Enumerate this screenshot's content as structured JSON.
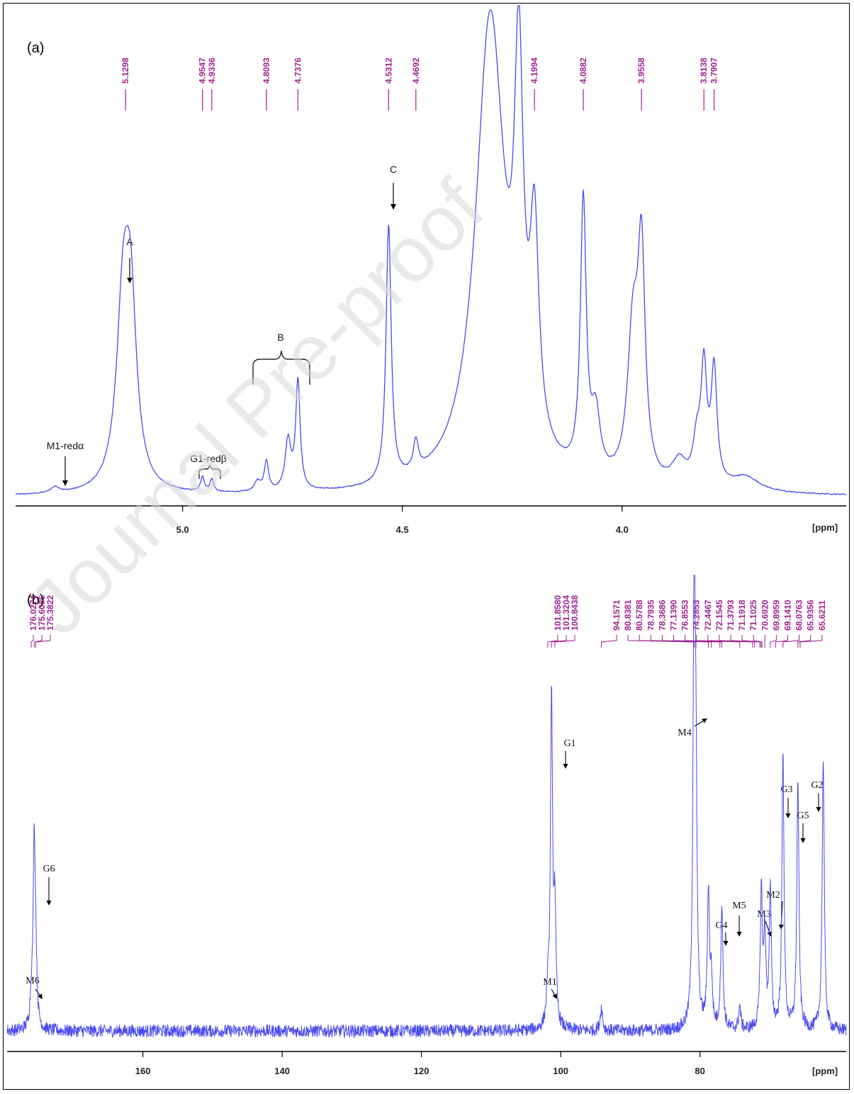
{
  "watermark": "Journal Pre-proof",
  "colors": {
    "spectrum": "#4a4af0",
    "peak_labels": "#a0208f",
    "frame": "#000000"
  },
  "chart_data": [
    {
      "panel": "(a)",
      "type": "line",
      "x_unit": "[ppm]",
      "x_axis_reversed": true,
      "xlim": [
        5.38,
        3.49
      ],
      "x_ticks": [
        "5.0",
        "4.5",
        "4.0"
      ],
      "peak_list": [
        "5.1298",
        "4.9547",
        "4.9336",
        "4.8093",
        "4.7376",
        "4.5312",
        "4.4692",
        "4.1994",
        "4.0882",
        "3.9558",
        "3.8138",
        "3.7907"
      ],
      "annotations": [
        {
          "text": "M1-redα",
          "ppm": 5.29
        },
        {
          "text": "A",
          "ppm": 5.13
        },
        {
          "text": "G1-redβ",
          "ppm": 4.945
        },
        {
          "text": "B",
          "ppm": 4.77
        },
        {
          "text": "C",
          "ppm": 4.531
        }
      ],
      "series": [
        {
          "peaks": [
            {
              "ppm": 5.29,
              "height": 0.012,
              "width": 0.012
            },
            {
              "ppm": 5.135,
              "height": 0.36,
              "width": 0.018
            },
            {
              "ppm": 5.118,
              "height": 0.32,
              "width": 0.016
            },
            {
              "ppm": 4.9547,
              "height": 0.03,
              "width": 0.005
            },
            {
              "ppm": 4.9336,
              "height": 0.025,
              "width": 0.005
            },
            {
              "ppm": 4.83,
              "height": 0.02,
              "width": 0.008
            },
            {
              "ppm": 4.8093,
              "height": 0.06,
              "width": 0.006
            },
            {
              "ppm": 4.76,
              "height": 0.1,
              "width": 0.008
            },
            {
              "ppm": 4.7376,
              "height": 0.22,
              "width": 0.006
            },
            {
              "ppm": 4.5312,
              "height": 0.52,
              "width": 0.007
            },
            {
              "ppm": 4.4692,
              "height": 0.06,
              "width": 0.007
            },
            {
              "ppm": 4.3,
              "height": 0.95,
              "width": 0.04
            },
            {
              "ppm": 4.235,
              "height": 0.7,
              "width": 0.012
            },
            {
              "ppm": 4.1994,
              "height": 0.42,
              "width": 0.012
            },
            {
              "ppm": 4.0882,
              "height": 0.55,
              "width": 0.008
            },
            {
              "ppm": 4.06,
              "height": 0.12,
              "width": 0.012
            },
            {
              "ppm": 3.975,
              "height": 0.3,
              "width": 0.015
            },
            {
              "ppm": 3.9558,
              "height": 0.43,
              "width": 0.01
            },
            {
              "ppm": 3.87,
              "height": 0.05,
              "width": 0.02
            },
            {
              "ppm": 3.83,
              "height": 0.08,
              "width": 0.01
            },
            {
              "ppm": 3.8138,
              "height": 0.23,
              "width": 0.008
            },
            {
              "ppm": 3.7907,
              "height": 0.23,
              "width": 0.008
            },
            {
              "ppm": 3.72,
              "height": 0.03,
              "width": 0.04
            }
          ]
        }
      ]
    },
    {
      "panel": "(b)",
      "type": "line",
      "x_unit": "[ppm]",
      "x_axis_reversed": true,
      "xlim": [
        179.5,
        59.0
      ],
      "x_ticks": [
        "160",
        "140",
        "120",
        "100",
        "80"
      ],
      "peak_list_left": [
        "176.0274",
        "175.6085",
        "175.3822"
      ],
      "peak_list_mid": [
        "101.8580",
        "101.3204",
        "100.8438"
      ],
      "peak_list_right": [
        "94.1571",
        "80.8381",
        "80.5788",
        "78.7935",
        "78.3686",
        "77.1390",
        "76.8553",
        "74.2853",
        "72.4467",
        "72.1545",
        "71.3793",
        "71.1918",
        "71.1025",
        "70.6920",
        "69.8959",
        "69.1410",
        "68.0763",
        "65.9356",
        "65.6211"
      ],
      "annotations": [
        {
          "text": "M6",
          "ppm": 176.0
        },
        {
          "text": "G6",
          "ppm": 175.6
        },
        {
          "text": "M1",
          "ppm": 101.86
        },
        {
          "text": "G1",
          "ppm": 101.32
        },
        {
          "text": "M4",
          "ppm": 80.84
        },
        {
          "text": "G4",
          "ppm": 78.79
        },
        {
          "text": "M5",
          "ppm": 76.86
        },
        {
          "text": "M3",
          "ppm": 71.19
        },
        {
          "text": "M2",
          "ppm": 69.9
        },
        {
          "text": "G3",
          "ppm": 68.08
        },
        {
          "text": "G5",
          "ppm": 65.94
        },
        {
          "text": "G2",
          "ppm": 62.3
        }
      ],
      "series": [
        {
          "peaks": [
            {
              "ppm": 176.03,
              "height": 0.06,
              "width": 0.2
            },
            {
              "ppm": 175.61,
              "height": 0.4,
              "width": 0.18
            },
            {
              "ppm": 175.38,
              "height": 0.12,
              "width": 0.18
            },
            {
              "ppm": 101.86,
              "height": 0.07,
              "width": 0.2
            },
            {
              "ppm": 101.32,
              "height": 0.72,
              "width": 0.18
            },
            {
              "ppm": 100.84,
              "height": 0.25,
              "width": 0.18
            },
            {
              "ppm": 94.16,
              "height": 0.05,
              "width": 0.2
            },
            {
              "ppm": 80.84,
              "height": 1.0,
              "width": 0.18
            },
            {
              "ppm": 80.58,
              "height": 0.45,
              "width": 0.18
            },
            {
              "ppm": 78.79,
              "height": 0.3,
              "width": 0.18
            },
            {
              "ppm": 78.37,
              "height": 0.1,
              "width": 0.18
            },
            {
              "ppm": 76.86,
              "height": 0.27,
              "width": 0.18
            },
            {
              "ppm": 74.29,
              "height": 0.05,
              "width": 0.18
            },
            {
              "ppm": 71.19,
              "height": 0.3,
              "width": 0.18
            },
            {
              "ppm": 70.69,
              "height": 0.2,
              "width": 0.18
            },
            {
              "ppm": 69.9,
              "height": 0.3,
              "width": 0.18
            },
            {
              "ppm": 68.08,
              "height": 0.6,
              "width": 0.18
            },
            {
              "ppm": 65.94,
              "height": 0.55,
              "width": 0.18
            },
            {
              "ppm": 62.3,
              "height": 0.6,
              "width": 0.18
            }
          ]
        }
      ]
    }
  ]
}
